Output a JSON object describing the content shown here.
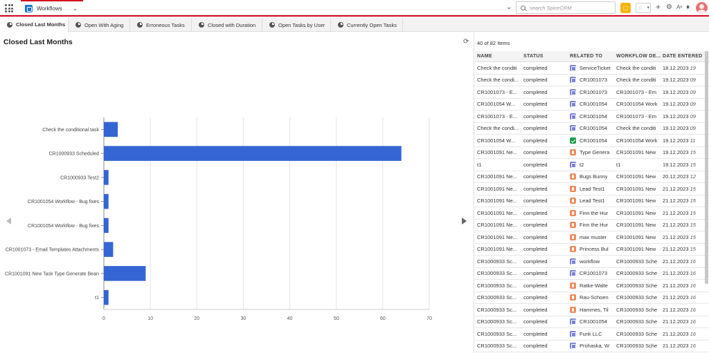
{
  "header": {
    "module": "Workflows",
    "search_placeholder": "search SpiceCRM",
    "icons": [
      "app-grid-icon",
      "chevron-down-icon",
      "search-icon",
      "shortcut-icon",
      "star-icon",
      "plus-icon",
      "gear-icon",
      "language-icon",
      "bell-icon",
      "avatar"
    ]
  },
  "tabs": [
    {
      "label": "Closed Last Months",
      "active": true
    },
    {
      "label": "Open With Aging",
      "active": false
    },
    {
      "label": "Erroneous Tasks",
      "active": false
    },
    {
      "label": "Closed with Duration",
      "active": false
    },
    {
      "label": "Open Tasks by User",
      "active": false
    },
    {
      "label": "Currently Open Tasks",
      "active": false
    }
  ],
  "left": {
    "title": "Closed Last Months"
  },
  "chart_data": {
    "type": "bar",
    "orientation": "horizontal",
    "categories": [
      "Check the conditional task",
      "CR1000933 Scheduled",
      "CR1000933 Test2",
      "CR1001054 Workflow - Bug fixes",
      "CR1001054 Workflow - Bug fixes",
      "CR1001073 - Email Templates Attachments",
      "CR1001091 New Task Type Generate Bean",
      "t1"
    ],
    "values": [
      3,
      64,
      1,
      1,
      1,
      2,
      9,
      1
    ],
    "xlim": [
      0,
      70
    ],
    "xticks": [
      0,
      10,
      20,
      30,
      40,
      50,
      60,
      70
    ],
    "grid": true,
    "color": "#3565d4"
  },
  "right": {
    "count_text": "40 of 82 Items",
    "columns": [
      "NAME",
      "STATUS",
      "RELATED TO",
      "WORKFLOW DE...",
      "DATE ENTERED"
    ],
    "rows": [
      {
        "name": "Check the conditi",
        "status": "completed",
        "badge": "cal",
        "related": "ServiceTicket",
        "desc": "Check the conditi",
        "date": "18.12.2023",
        "time": "19"
      },
      {
        "name": "Check the condi...",
        "status": "completed",
        "badge": "cal",
        "related": "CR1001073",
        "desc": "Check the conditi",
        "date": "19.12.2023",
        "time": "09"
      },
      {
        "name": "CR1001073 - E...",
        "status": "completed",
        "badge": "cal",
        "related": "CR1001073",
        "desc": "CR1001073 - Em",
        "date": "19.12.2023",
        "time": "09"
      },
      {
        "name": "CR1001054 W...",
        "status": "completed",
        "badge": "cal",
        "related": "CR1001054",
        "desc": "CR1001054 Work",
        "date": "19.12.2023",
        "time": "09"
      },
      {
        "name": "CR1001073 - E...",
        "status": "completed",
        "badge": "cal",
        "related": "CR1001054",
        "desc": "CR1001073 - Em",
        "date": "19.12.2023",
        "time": "09"
      },
      {
        "name": "Check the condi...",
        "status": "completed",
        "badge": "cal",
        "related": "CR1001054",
        "desc": "Check the conditi",
        "date": "19.12.2023",
        "time": "09"
      },
      {
        "name": "CR1001054 W...",
        "status": "completed",
        "badge": "green",
        "related": "CR1001054",
        "desc": "CR1001054 Work",
        "date": "19.12.2023",
        "time": "11"
      },
      {
        "name": "CR1001091 Ne...",
        "status": "completed",
        "badge": "orange",
        "related": "Type Genera",
        "desc": "CR1001091 New",
        "date": "19.12.2023",
        "time": "15"
      },
      {
        "name": "t1",
        "status": "completed",
        "badge": "cal",
        "related": "t2",
        "desc": "t1",
        "date": "19.12.2023",
        "time": "15"
      },
      {
        "name": "CR1001091 Ne...",
        "status": "completed",
        "badge": "orange",
        "related": "Bugs Bunny",
        "desc": "CR1001091 New",
        "date": "20.12.2023",
        "time": "12"
      },
      {
        "name": "CR1001091 Ne...",
        "status": "completed",
        "badge": "orange",
        "related": "Lead Test1",
        "desc": "CR1001091 New",
        "date": "21.12.2023",
        "time": "15"
      },
      {
        "name": "CR1001091 Ne...",
        "status": "completed",
        "badge": "orange",
        "related": "Lead Test1",
        "desc": "CR1001091 New",
        "date": "21.12.2023",
        "time": "15"
      },
      {
        "name": "CR1001091 Ne...",
        "status": "completed",
        "badge": "orange",
        "related": "Finn the Hur",
        "desc": "CR1001091 New",
        "date": "21.12.2023",
        "time": "15"
      },
      {
        "name": "CR1001091 Ne...",
        "status": "completed",
        "badge": "orange",
        "related": "Finn the Hur",
        "desc": "CR1001091 New",
        "date": "21.12.2023",
        "time": "15"
      },
      {
        "name": "CR1001091 Ne...",
        "status": "completed",
        "badge": "orange",
        "related": "max muster",
        "desc": "CR1001091 New",
        "date": "21.12.2023",
        "time": "15"
      },
      {
        "name": "CR1001091 Ne...",
        "status": "completed",
        "badge": "orange",
        "related": "Princess Bul",
        "desc": "CR1001091 New",
        "date": "21.12.2023",
        "time": "15"
      },
      {
        "name": "CR1000933 Sc...",
        "status": "completed",
        "badge": "cal",
        "related": "workflow",
        "desc": "CR1000933 Sche",
        "date": "21.12.2023",
        "time": "16"
      },
      {
        "name": "CR1000933 Sc...",
        "status": "completed",
        "badge": "cal",
        "related": "CR1001073",
        "desc": "CR1000933 Sche",
        "date": "21.12.2023",
        "time": "16"
      },
      {
        "name": "CR1000933 Sc...",
        "status": "completed",
        "badge": "orange",
        "related": "Ratke-Walte",
        "desc": "CR1000933 Sche",
        "date": "21.12.2023",
        "time": "16"
      },
      {
        "name": "CR1000933 Sc...",
        "status": "completed",
        "badge": "orange",
        "related": "Rau-Schoen",
        "desc": "CR1000933 Sche",
        "date": "21.12.2023",
        "time": "16"
      },
      {
        "name": "CR1000933 Sc...",
        "status": "completed",
        "badge": "orange",
        "related": "Hammes, Til",
        "desc": "CR1000933 Sche",
        "date": "21.12.2023",
        "time": "16"
      },
      {
        "name": "CR1000933 Sc...",
        "status": "completed",
        "badge": "cal",
        "related": "CR1001054",
        "desc": "CR1000933 Sche",
        "date": "21.12.2023",
        "time": "16"
      },
      {
        "name": "CR1000933 Sc...",
        "status": "completed",
        "badge": "cal",
        "related": "Funk LLC",
        "desc": "CR1000933 Sche",
        "date": "21.12.2023",
        "time": "16"
      },
      {
        "name": "CR1000933 Sc...",
        "status": "completed",
        "badge": "cal",
        "related": "Prohaska, W",
        "desc": "CR1000933 Sche",
        "date": "21.12.2023",
        "time": "16"
      }
    ]
  }
}
